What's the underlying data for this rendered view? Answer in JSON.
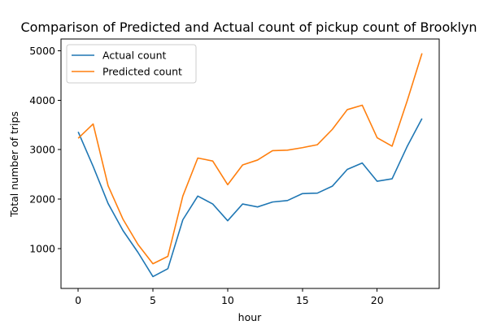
{
  "chart_data": {
    "type": "line",
    "title": "Comparison of Predicted and Actual count of pickup count of Brooklyn",
    "xlabel": "hour",
    "ylabel": "Total number of trips",
    "xlim": [
      -1.15,
      24.15
    ],
    "ylim": [
      190,
      5240
    ],
    "xticks": [
      0,
      5,
      10,
      15,
      20
    ],
    "yticks": [
      1000,
      2000,
      3000,
      4000,
      5000
    ],
    "grid": false,
    "legend_position": "top-left",
    "x": [
      0,
      1,
      2,
      3,
      4,
      5,
      6,
      7,
      8,
      9,
      10,
      11,
      12,
      13,
      14,
      15,
      16,
      17,
      18,
      19,
      20,
      21,
      22,
      23
    ],
    "series": [
      {
        "name": "Actual count",
        "color": "#1f77b4",
        "values": [
          3360,
          2660,
          1910,
          1360,
          920,
          430,
          590,
          1580,
          2060,
          1900,
          1560,
          1900,
          1840,
          1940,
          1970,
          2110,
          2120,
          2260,
          2600,
          2730,
          2360,
          2410,
          3060,
          3630
        ]
      },
      {
        "name": "Predicted count",
        "color": "#ff7f0e",
        "values": [
          3230,
          3520,
          2270,
          1590,
          1080,
          690,
          840,
          2060,
          2830,
          2770,
          2290,
          2690,
          2790,
          2980,
          2990,
          3040,
          3100,
          3410,
          3810,
          3900,
          3240,
          3070,
          3980,
          4950
        ]
      }
    ]
  }
}
